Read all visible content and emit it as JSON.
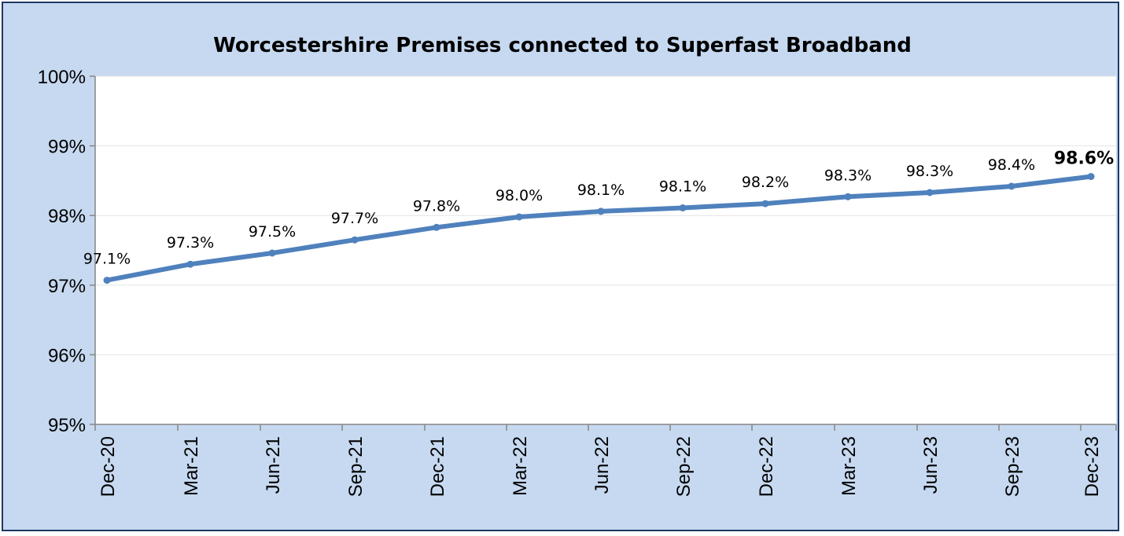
{
  "chart_data": {
    "type": "line",
    "title": "Worcestershire Premises connected to Superfast Broadband",
    "xlabel": "",
    "ylabel": "",
    "categories": [
      "Dec-20",
      "Mar-21",
      "Jun-21",
      "Sep-21",
      "Dec-21",
      "Mar-22",
      "Jun-22",
      "Sep-22",
      "Dec-22",
      "Mar-23",
      "Jun-23",
      "Sep-23",
      "Dec-23"
    ],
    "series": [
      {
        "values": [
          97.07,
          97.3,
          97.46,
          97.65,
          97.83,
          97.98,
          98.06,
          98.11,
          98.17,
          98.27,
          98.33,
          98.42,
          98.56
        ],
        "labels": [
          "97.1%",
          "97.3%",
          "97.5%",
          "97.7%",
          "97.8%",
          "98.0%",
          "98.1%",
          "98.1%",
          "98.2%",
          "98.3%",
          "98.3%",
          "98.4%",
          "98.6%"
        ],
        "color": "#4f81bd"
      }
    ],
    "ylim": [
      95,
      100
    ],
    "yticks": [
      "95%",
      "96%",
      "97%",
      "98%",
      "99%",
      "100%"
    ],
    "grid": true,
    "legend": "none"
  },
  "colors": {
    "background": "#c6d9f0",
    "plot_area": "#ffffff",
    "border": "#1f3864",
    "line": "#4f81bd"
  }
}
